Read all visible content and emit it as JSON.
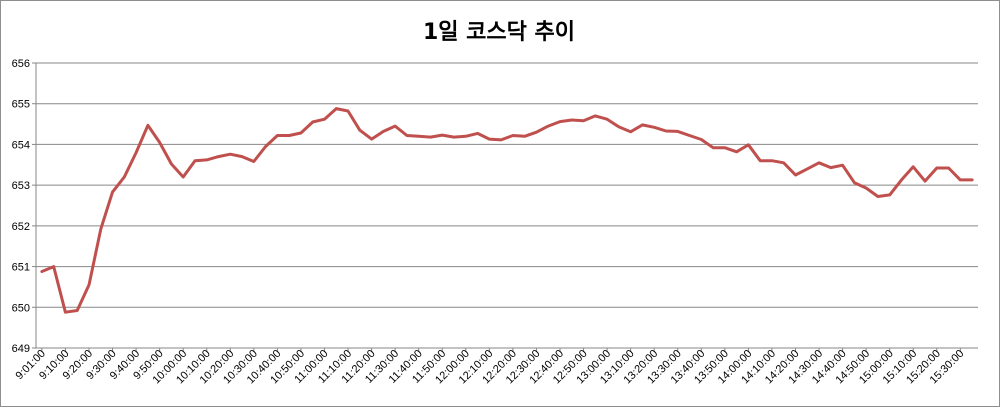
{
  "chart_data": {
    "type": "line",
    "title": "1일 코스닥 추이",
    "xlabel": "",
    "ylabel": "",
    "ylim": [
      649,
      656
    ],
    "yticks": [
      649,
      650,
      651,
      652,
      653,
      654,
      655,
      656
    ],
    "grid": true,
    "legend": "none",
    "line_color": "#c0504d",
    "xtick_labels": [
      "9:01:00",
      "9:10:00",
      "9:20:00",
      "9:30:00",
      "9:40:00",
      "9:50:00",
      "10:00:00",
      "10:10:00",
      "10:20:00",
      "10:30:00",
      "10:40:00",
      "10:50:00",
      "11:00:00",
      "11:10:00",
      "11:20:00",
      "11:30:00",
      "11:40:00",
      "11:50:00",
      "12:00:00",
      "12:10:00",
      "12:20:00",
      "12:30:00",
      "12:40:00",
      "12:50:00",
      "13:00:00",
      "13:10:00",
      "13:20:00",
      "13:30:00",
      "13:40:00",
      "13:50:00",
      "14:00:00",
      "14:10:00",
      "14:20:00",
      "14:30:00",
      "14:40:00",
      "14:50:00",
      "15:00:00",
      "15:10:00",
      "15:20:00",
      "15:30:00"
    ],
    "values": [
      650.88,
      651.0,
      649.88,
      649.92,
      650.55,
      651.92,
      652.83,
      653.2,
      653.8,
      654.47,
      654.05,
      653.52,
      653.2,
      653.6,
      653.62,
      653.7,
      653.76,
      653.7,
      653.58,
      653.95,
      654.22,
      654.22,
      654.28,
      654.55,
      654.62,
      654.88,
      654.82,
      654.35,
      654.13,
      654.32,
      654.45,
      654.22,
      654.2,
      654.18,
      654.23,
      654.18,
      654.2,
      654.27,
      654.13,
      654.11,
      654.22,
      654.2,
      654.3,
      654.45,
      654.56,
      654.6,
      654.58,
      654.7,
      654.62,
      654.43,
      654.31,
      654.48,
      654.42,
      654.33,
      654.32,
      654.22,
      654.12,
      653.92,
      653.92,
      653.82,
      653.99,
      653.6,
      653.6,
      653.55,
      653.25,
      653.4,
      653.55,
      653.43,
      653.49,
      653.06,
      652.93,
      652.72,
      652.76,
      653.13,
      653.45,
      653.1,
      653.42,
      653.42,
      653.13,
      653.13
    ]
  }
}
